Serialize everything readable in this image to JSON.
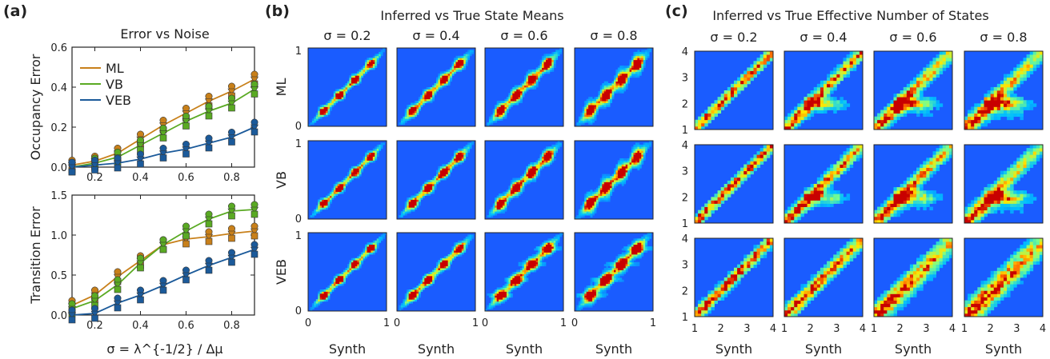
{
  "panels": {
    "a": {
      "label": "(a)",
      "title": "Error vs Noise",
      "xlabel": "σ = λ^{-1/2} / Δμ"
    },
    "b": {
      "label": "(b)",
      "title": "Inferred vs True State Means"
    },
    "c": {
      "label": "(c)",
      "title": "Inferred vs True Effective Number of States"
    }
  },
  "colors": {
    "ML": "#c8801a",
    "VB": "#5aaa23",
    "VEB": "#1b5a9a",
    "heatmap_bg": "#1a5cff"
  },
  "chart_data": [
    {
      "type": "line",
      "panel": "a-top",
      "ylabel": "Occupancy Error",
      "xlim": [
        0.1,
        0.9
      ],
      "ylim": [
        0,
        0.6
      ],
      "xticks": [
        "0.2",
        "0.4",
        "0.6",
        "0.8"
      ],
      "yticks": [
        "0.0",
        "0.2",
        "0.4",
        "0.6"
      ],
      "legend": {
        "position": "top-left",
        "entries": [
          "ML",
          "VB",
          "VEB"
        ]
      },
      "x": [
        0.1,
        0.2,
        0.3,
        0.4,
        0.5,
        0.6,
        0.7,
        0.8,
        0.9
      ],
      "series": [
        {
          "name": "ML",
          "values": [
            0.01,
            0.03,
            0.07,
            0.14,
            0.21,
            0.27,
            0.33,
            0.38,
            0.44
          ]
        },
        {
          "name": "VB",
          "values": [
            0.0,
            0.02,
            0.05,
            0.11,
            0.17,
            0.23,
            0.28,
            0.32,
            0.39
          ]
        },
        {
          "name": "VEB",
          "values": [
            0.0,
            0.01,
            0.02,
            0.04,
            0.07,
            0.09,
            0.12,
            0.15,
            0.2
          ]
        }
      ]
    },
    {
      "type": "line",
      "panel": "a-bottom",
      "ylabel": "Transition Error",
      "xlim": [
        0.1,
        0.9
      ],
      "ylim": [
        0,
        1.5
      ],
      "xticks": [
        "0.2",
        "0.4",
        "0.6",
        "0.8"
      ],
      "yticks": [
        "0.0",
        "0.5",
        "1.0",
        "1.5"
      ],
      "x": [
        0.1,
        0.2,
        0.3,
        0.4,
        0.5,
        0.6,
        0.7,
        0.8,
        0.9
      ],
      "series": [
        {
          "name": "ML",
          "values": [
            0.12,
            0.25,
            0.48,
            0.68,
            0.88,
            0.95,
            0.98,
            1.02,
            1.05
          ]
        },
        {
          "name": "VB",
          "values": [
            0.08,
            0.18,
            0.38,
            0.65,
            0.88,
            1.05,
            1.2,
            1.3,
            1.32
          ]
        },
        {
          "name": "VEB",
          "values": [
            0.0,
            0.02,
            0.15,
            0.25,
            0.37,
            0.5,
            0.62,
            0.72,
            0.82
          ]
        }
      ]
    },
    {
      "type": "heatmap",
      "panel": "b",
      "columns": [
        "σ = 0.2",
        "σ = 0.4",
        "σ = 0.6",
        "σ = 0.8"
      ],
      "rows": [
        "ML",
        "VB",
        "VEB"
      ],
      "xlabel": "Synth",
      "xlim": [
        0,
        1
      ],
      "ylim": [
        0,
        1
      ],
      "xticks": [
        "0",
        "1"
      ],
      "yticks": [
        "0",
        "1"
      ],
      "state_means": [
        0.2,
        0.4,
        0.6,
        0.8
      ]
    },
    {
      "type": "heatmap",
      "panel": "c",
      "columns": [
        "σ = 0.2",
        "σ = 0.4",
        "σ = 0.6",
        "σ = 0.8"
      ],
      "xlabel": "Synth",
      "xlim": [
        1,
        4
      ],
      "ylim": [
        1,
        4
      ],
      "xticks": [
        "1",
        "2",
        "3",
        "4"
      ],
      "yticks": [
        "1",
        "2",
        "3",
        "4"
      ]
    }
  ]
}
